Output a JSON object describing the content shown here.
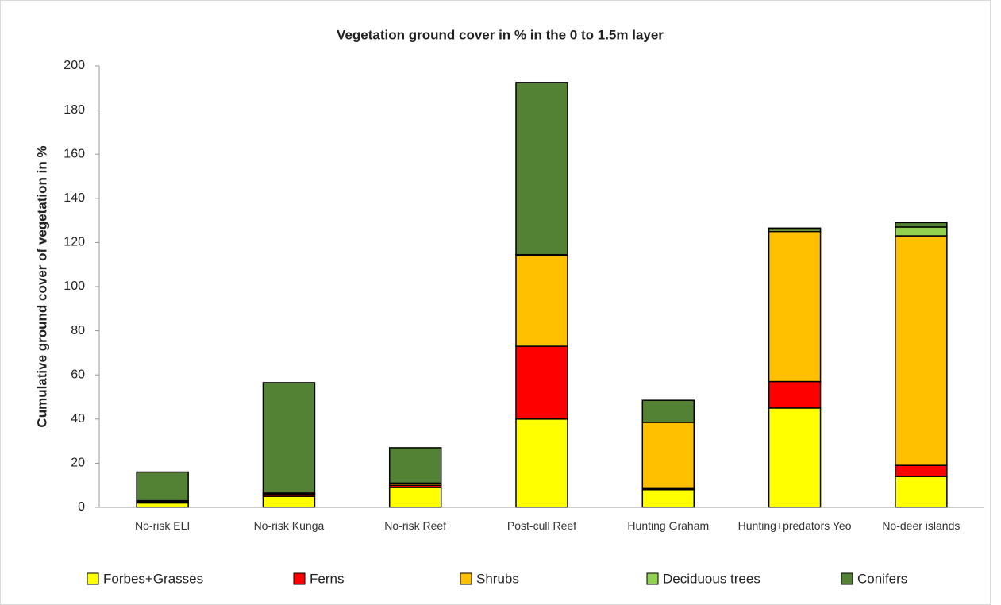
{
  "chart_data": {
    "type": "stacked_bar",
    "title": "Vegetation ground cover in % in the 0 to 1.5m layer",
    "y_label": "Cumulative ground cover of vegetation in %",
    "categories": [
      "No-risk ELI",
      "No-risk Kunga",
      "No-risk Reef",
      "Post-cull Reef",
      "Hunting Graham",
      "Hunting+predators Yeo",
      "No-deer islands"
    ],
    "series": [
      {
        "name": "Forbes+Grasses",
        "color": "#ffff00",
        "values": [
          2,
          5,
          9,
          40,
          8,
          45,
          14
        ]
      },
      {
        "name": "Ferns",
        "color": "#ff0000",
        "values": [
          0.5,
          1,
          1,
          33,
          0.5,
          12,
          5
        ]
      },
      {
        "name": "Shrubs",
        "color": "#ffc000",
        "values": [
          0.5,
          0.5,
          1,
          41,
          30,
          68,
          104
        ]
      },
      {
        "name": "Deciduous trees",
        "color": "#92d050",
        "values": [
          0,
          0,
          0,
          0.5,
          0,
          1,
          4
        ]
      },
      {
        "name": "Conifers",
        "color": "#548235",
        "values": [
          13,
          50,
          16,
          78,
          10,
          0.5,
          2
        ]
      }
    ],
    "ylim": [
      0,
      200
    ],
    "yticks": [
      0,
      20,
      40,
      60,
      80,
      100,
      120,
      140,
      160,
      180,
      200
    ],
    "legend": "bottom"
  }
}
